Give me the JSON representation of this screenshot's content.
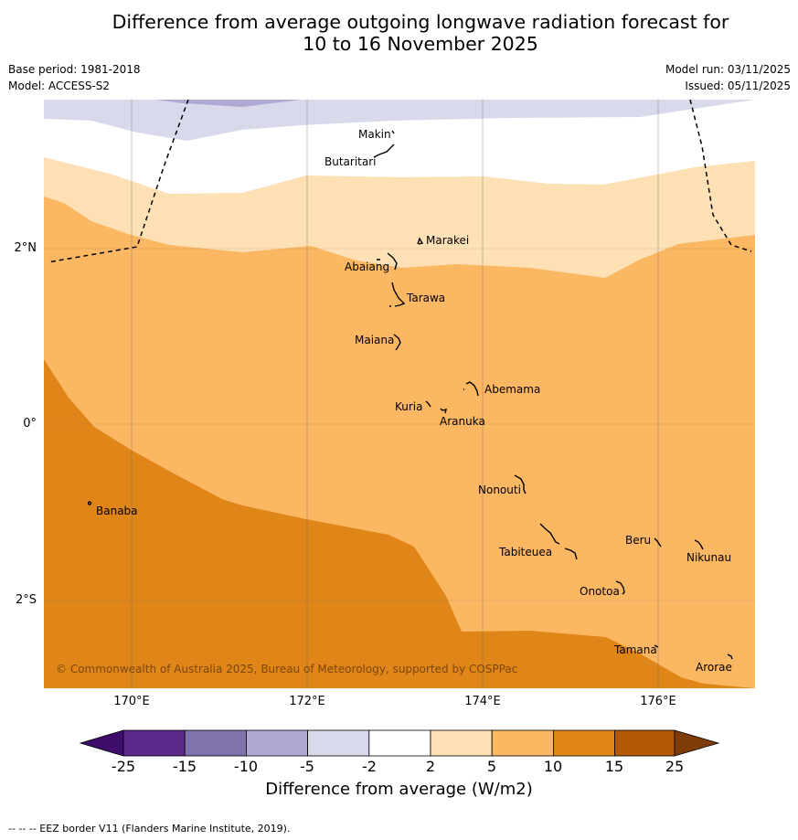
{
  "title_line1": "Difference from average outgoing longwave radiation forecast for",
  "title_line2": "10 to 16 November 2025",
  "base_period": "Base period: 1981-2018",
  "model": "Model: ACCESS-S2",
  "model_run": "Model run: 03/11/2025",
  "issued": "Issued: 05/11/2025",
  "latitude_labels": [
    "2°N",
    "0°",
    "2°S"
  ],
  "longitude_labels": [
    "170°E",
    "172°E",
    "174°E",
    "176°E"
  ],
  "places": [
    "Makin",
    "Butaritari",
    "Marakei",
    "Abaiang",
    "Tarawa",
    "Maiana",
    "Abemama",
    "Kuria",
    "Aranuka",
    "Nonouti",
    "Banaba",
    "Beru",
    "Tabiteuea",
    "Nikunau",
    "Onotoa",
    "Tamana",
    "Arorae"
  ],
  "copyright": "© Commonwealth of Australia 2025, Bureau of Meteorology, supported by COSPPac",
  "colorbar": {
    "ticks": [
      "-25",
      "-15",
      "-10",
      "-5",
      "-2",
      "2",
      "5",
      "10",
      "15",
      "25"
    ],
    "colors": [
      "#3f0d6b",
      "#5b2a8c",
      "#8072ad",
      "#b0a9d2",
      "#d9d9ec",
      "#ffffff",
      "#fde0b4",
      "#fbb762",
      "#e08618",
      "#b35806",
      "#7f3b08"
    ],
    "label": "Difference from average (W/m2)"
  },
  "footer": "-- -- -- EEZ border V11 (Flanders Marine Institute, 2019)."
}
